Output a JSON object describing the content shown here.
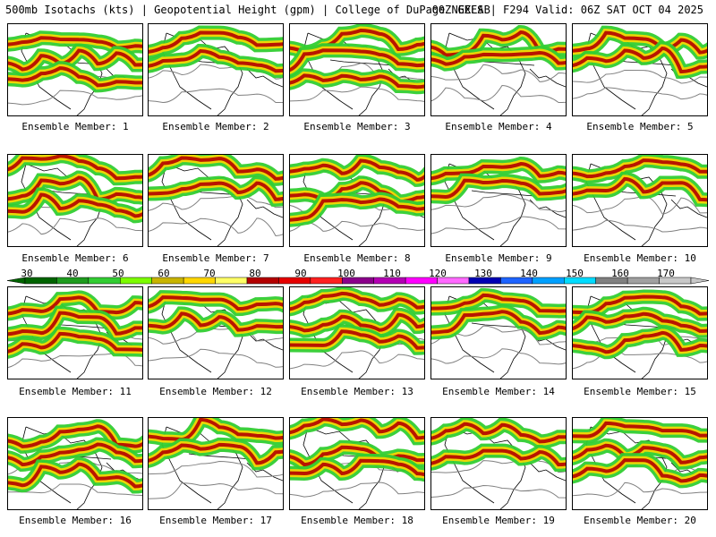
{
  "header": {
    "left": "500mb Isotachs (kts) | Geopotential Height (gpm) | College of DuPage NEXLAB",
    "right": "00Z GEFS | F294 Valid: 06Z SAT OCT 04 2025"
  },
  "panels": [
    {
      "caption": "Ensemble Member: 1"
    },
    {
      "caption": "Ensemble Member: 2"
    },
    {
      "caption": "Ensemble Member: 3"
    },
    {
      "caption": "Ensemble Member: 4"
    },
    {
      "caption": "Ensemble Member: 5"
    },
    {
      "caption": "Ensemble Member: 6"
    },
    {
      "caption": "Ensemble Member: 7"
    },
    {
      "caption": "Ensemble Member: 8"
    },
    {
      "caption": "Ensemble Member: 9"
    },
    {
      "caption": "Ensemble Member: 10"
    },
    {
      "caption": "Ensemble Member: 11"
    },
    {
      "caption": "Ensemble Member: 12"
    },
    {
      "caption": "Ensemble Member: 13"
    },
    {
      "caption": "Ensemble Member: 14"
    },
    {
      "caption": "Ensemble Member: 15"
    },
    {
      "caption": "Ensemble Member: 16"
    },
    {
      "caption": "Ensemble Member: 17"
    },
    {
      "caption": "Ensemble Member: 18"
    },
    {
      "caption": "Ensemble Member: 19"
    },
    {
      "caption": "Ensemble Member: 20"
    }
  ],
  "colorbar": {
    "labels": [
      "30",
      "40",
      "50",
      "60",
      "70",
      "80",
      "90",
      "100",
      "110",
      "120",
      "130",
      "140",
      "150",
      "160",
      "170"
    ],
    "colors": [
      "#006400",
      "#1e9b1e",
      "#32cd32",
      "#7cfc00",
      "#c8b400",
      "#ffd700",
      "#ffff66",
      "#b40000",
      "#e60000",
      "#ff2020",
      "#8b008b",
      "#b400b4",
      "#ff00ff",
      "#ff69ff",
      "#0000b4",
      "#1e64ff",
      "#00a0ff",
      "#00dcff",
      "#808080",
      "#a0a0a0",
      "#c8c8c8"
    ]
  },
  "legend_colors": {
    "jet_low": "#32cd32",
    "jet_mid": "#ffd700",
    "jet_high": "#b40000",
    "height_contour": "#808080",
    "border": "#000000"
  }
}
